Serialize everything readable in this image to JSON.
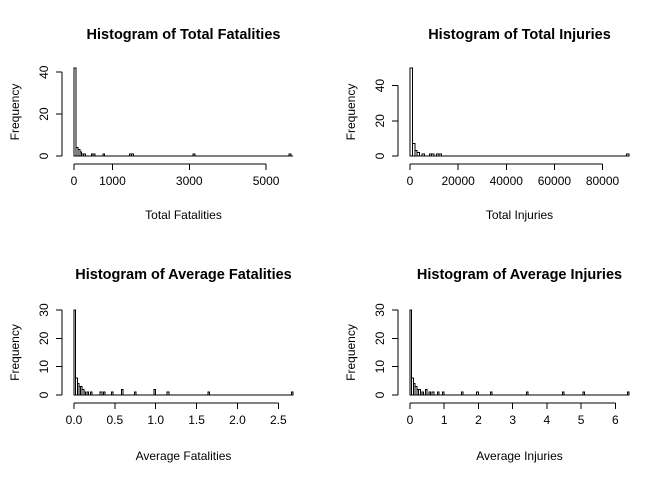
{
  "chart_data": [
    {
      "type": "bar",
      "title": "Histogram of Total Fatalities",
      "xlabel": "Total Fatalities",
      "ylabel": "Frequency",
      "bin_width": 50,
      "xlim": [
        0,
        5700
      ],
      "ylim": [
        0,
        42
      ],
      "xticks": [
        0,
        1000,
        3000,
        5000
      ],
      "xtick_labels": [
        "0",
        "1000",
        "3000",
        "5000"
      ],
      "yticks": [
        0,
        20,
        40
      ],
      "ytick_labels": [
        "0",
        "20",
        "40"
      ],
      "bins": [
        {
          "x0": 0,
          "count": 42
        },
        {
          "x0": 50,
          "count": 4
        },
        {
          "x0": 100,
          "count": 3
        },
        {
          "x0": 150,
          "count": 2
        },
        {
          "x0": 200,
          "count": 1
        },
        {
          "x0": 250,
          "count": 1
        },
        {
          "x0": 450,
          "count": 1
        },
        {
          "x0": 500,
          "count": 1
        },
        {
          "x0": 750,
          "count": 1
        },
        {
          "x0": 1450,
          "count": 1
        },
        {
          "x0": 1500,
          "count": 1
        },
        {
          "x0": 3100,
          "count": 1
        },
        {
          "x0": 5600,
          "count": 1
        }
      ]
    },
    {
      "type": "bar",
      "title": "Histogram of Total Injuries",
      "xlabel": "Total Injuries",
      "ylabel": "Frequency",
      "bin_width": 1000,
      "xlim": [
        0,
        91000
      ],
      "ylim": [
        0,
        50
      ],
      "xticks": [
        0,
        20000,
        40000,
        60000,
        80000
      ],
      "xtick_labels": [
        "0",
        "20000",
        "40000",
        "60000",
        "80000"
      ],
      "yticks": [
        0,
        20,
        40
      ],
      "ytick_labels": [
        "0",
        "20",
        "40"
      ],
      "bins": [
        {
          "x0": 0,
          "count": 50
        },
        {
          "x0": 1000,
          "count": 7
        },
        {
          "x0": 2000,
          "count": 3
        },
        {
          "x0": 3000,
          "count": 2
        },
        {
          "x0": 5000,
          "count": 1
        },
        {
          "x0": 8000,
          "count": 1
        },
        {
          "x0": 9000,
          "count": 1
        },
        {
          "x0": 11000,
          "count": 1
        },
        {
          "x0": 12000,
          "count": 1
        },
        {
          "x0": 90000,
          "count": 1
        }
      ]
    },
    {
      "type": "bar",
      "title": "Histogram of Average Fatalities",
      "xlabel": "Average Fatalities",
      "ylabel": "Frequency",
      "bin_width": 0.02,
      "xlim": [
        0,
        2.68
      ],
      "ylim": [
        0,
        30
      ],
      "xticks": [
        0,
        0.5,
        1.0,
        1.5,
        2.0,
        2.5
      ],
      "xtick_labels": [
        "0.0",
        "0.5",
        "1.0",
        "1.5",
        "2.0",
        "2.5"
      ],
      "yticks": [
        0,
        10,
        20,
        30
      ],
      "ytick_labels": [
        "0",
        "10",
        "20",
        "30"
      ],
      "bins": [
        {
          "x0": 0,
          "count": 30
        },
        {
          "x0": 0.02,
          "count": 6
        },
        {
          "x0": 0.04,
          "count": 4
        },
        {
          "x0": 0.06,
          "count": 3
        },
        {
          "x0": 0.08,
          "count": 3
        },
        {
          "x0": 0.1,
          "count": 2
        },
        {
          "x0": 0.12,
          "count": 1
        },
        {
          "x0": 0.16,
          "count": 1
        },
        {
          "x0": 0.2,
          "count": 1
        },
        {
          "x0": 0.32,
          "count": 1
        },
        {
          "x0": 0.36,
          "count": 1
        },
        {
          "x0": 0.46,
          "count": 1
        },
        {
          "x0": 0.58,
          "count": 2
        },
        {
          "x0": 0.74,
          "count": 1
        },
        {
          "x0": 0.98,
          "count": 2
        },
        {
          "x0": 1.14,
          "count": 1
        },
        {
          "x0": 1.64,
          "count": 1
        },
        {
          "x0": 2.66,
          "count": 1
        }
      ]
    },
    {
      "type": "bar",
      "title": "Histogram of Average Injuries",
      "xlabel": "Average Injuries",
      "ylabel": "Frequency",
      "bin_width": 0.05,
      "xlim": [
        0,
        6.4
      ],
      "ylim": [
        0,
        30
      ],
      "xticks": [
        0,
        1,
        2,
        3,
        4,
        5,
        6
      ],
      "xtick_labels": [
        "0",
        "1",
        "2",
        "3",
        "4",
        "5",
        "6"
      ],
      "yticks": [
        0,
        10,
        20,
        30
      ],
      "ytick_labels": [
        "0",
        "10",
        "20",
        "30"
      ],
      "bins": [
        {
          "x0": 0,
          "count": 30
        },
        {
          "x0": 0.05,
          "count": 6
        },
        {
          "x0": 0.1,
          "count": 4
        },
        {
          "x0": 0.15,
          "count": 3
        },
        {
          "x0": 0.2,
          "count": 2
        },
        {
          "x0": 0.25,
          "count": 2
        },
        {
          "x0": 0.35,
          "count": 1
        },
        {
          "x0": 0.45,
          "count": 2
        },
        {
          "x0": 0.55,
          "count": 1
        },
        {
          "x0": 0.65,
          "count": 1
        },
        {
          "x0": 0.8,
          "count": 1
        },
        {
          "x0": 0.95,
          "count": 1
        },
        {
          "x0": 1.5,
          "count": 1
        },
        {
          "x0": 1.95,
          "count": 1
        },
        {
          "x0": 2.35,
          "count": 1
        },
        {
          "x0": 3.4,
          "count": 1
        },
        {
          "x0": 4.45,
          "count": 1
        },
        {
          "x0": 5.05,
          "count": 1
        },
        {
          "x0": 6.35,
          "count": 1
        }
      ]
    }
  ]
}
